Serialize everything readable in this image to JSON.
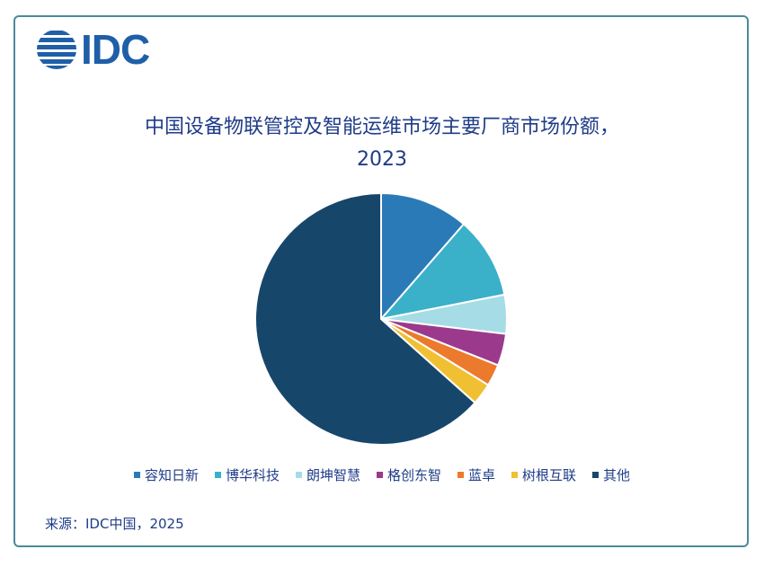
{
  "logo": "IDC",
  "chart_data": {
    "type": "pie",
    "title": "中国设备物联管控及智能运维市场主要厂商市场份额，2023",
    "categories": [
      "容知日新",
      "博华科技",
      "朗坤智慧",
      "格创东智",
      "蓝卓",
      "树根互联",
      "其他"
    ],
    "values": [
      11.4,
      10.5,
      5,
      4.1,
      2.8,
      2.8,
      63.4
    ],
    "colors": [
      "#2a7ab8",
      "#3bb0c9",
      "#a6dce6",
      "#9b3a8c",
      "#ec7a2c",
      "#f0c032",
      "#17466b"
    ],
    "legend": "bottom"
  },
  "source": "来源：IDC中国，2025"
}
